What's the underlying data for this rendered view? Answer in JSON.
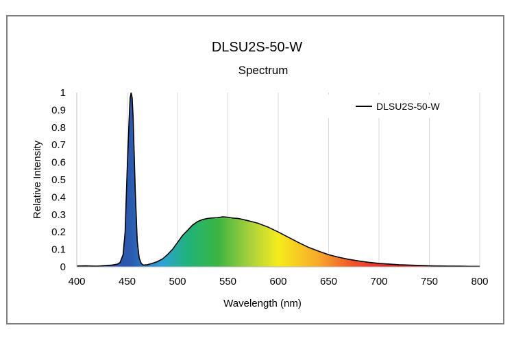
{
  "chart_data": {
    "type": "area",
    "title": "DLSU2S-50-W",
    "subtitle": "Spectrum",
    "xlabel": "Wavelength (nm)",
    "ylabel": "Relative Intensity",
    "xlim": [
      400,
      800
    ],
    "ylim": [
      0,
      1
    ],
    "x_ticks": [
      "400",
      "450",
      "500",
      "550",
      "600",
      "650",
      "700",
      "750",
      "800"
    ],
    "y_ticks": [
      "0",
      "0.1",
      "0.2",
      "0.3",
      "0.4",
      "0.5",
      "0.6",
      "0.7",
      "0.8",
      "0.9",
      "1"
    ],
    "grid": "vertical",
    "legend": "top-right",
    "series": [
      {
        "name": "DLSU2S-50-W",
        "color": "#000000",
        "x": [
          400,
          410,
          420,
          430,
          435,
          440,
          443,
          446,
          448,
          450,
          452,
          453,
          454,
          455,
          456,
          457,
          458,
          459,
          460,
          462,
          464,
          466,
          470,
          475,
          480,
          485,
          490,
          495,
          500,
          505,
          510,
          515,
          520,
          525,
          530,
          535,
          540,
          545,
          550,
          555,
          560,
          565,
          570,
          575,
          580,
          590,
          600,
          610,
          620,
          630,
          640,
          650,
          660,
          670,
          680,
          690,
          700,
          710,
          720,
          730,
          740,
          750,
          760,
          770,
          780,
          790,
          800
        ],
        "y": [
          0.005,
          0.006,
          0.004,
          0.008,
          0.01,
          0.015,
          0.025,
          0.07,
          0.2,
          0.55,
          0.85,
          0.97,
          1.0,
          0.97,
          0.85,
          0.65,
          0.45,
          0.3,
          0.15,
          0.05,
          0.02,
          0.01,
          0.012,
          0.02,
          0.03,
          0.045,
          0.07,
          0.1,
          0.14,
          0.18,
          0.21,
          0.24,
          0.26,
          0.272,
          0.278,
          0.281,
          0.283,
          0.287,
          0.285,
          0.28,
          0.278,
          0.272,
          0.265,
          0.258,
          0.25,
          0.228,
          0.2,
          0.17,
          0.14,
          0.112,
          0.09,
          0.07,
          0.055,
          0.043,
          0.034,
          0.026,
          0.02,
          0.016,
          0.012,
          0.01,
          0.008,
          0.006,
          0.005,
          0.004,
          0.004,
          0.003,
          0.003
        ]
      }
    ]
  }
}
